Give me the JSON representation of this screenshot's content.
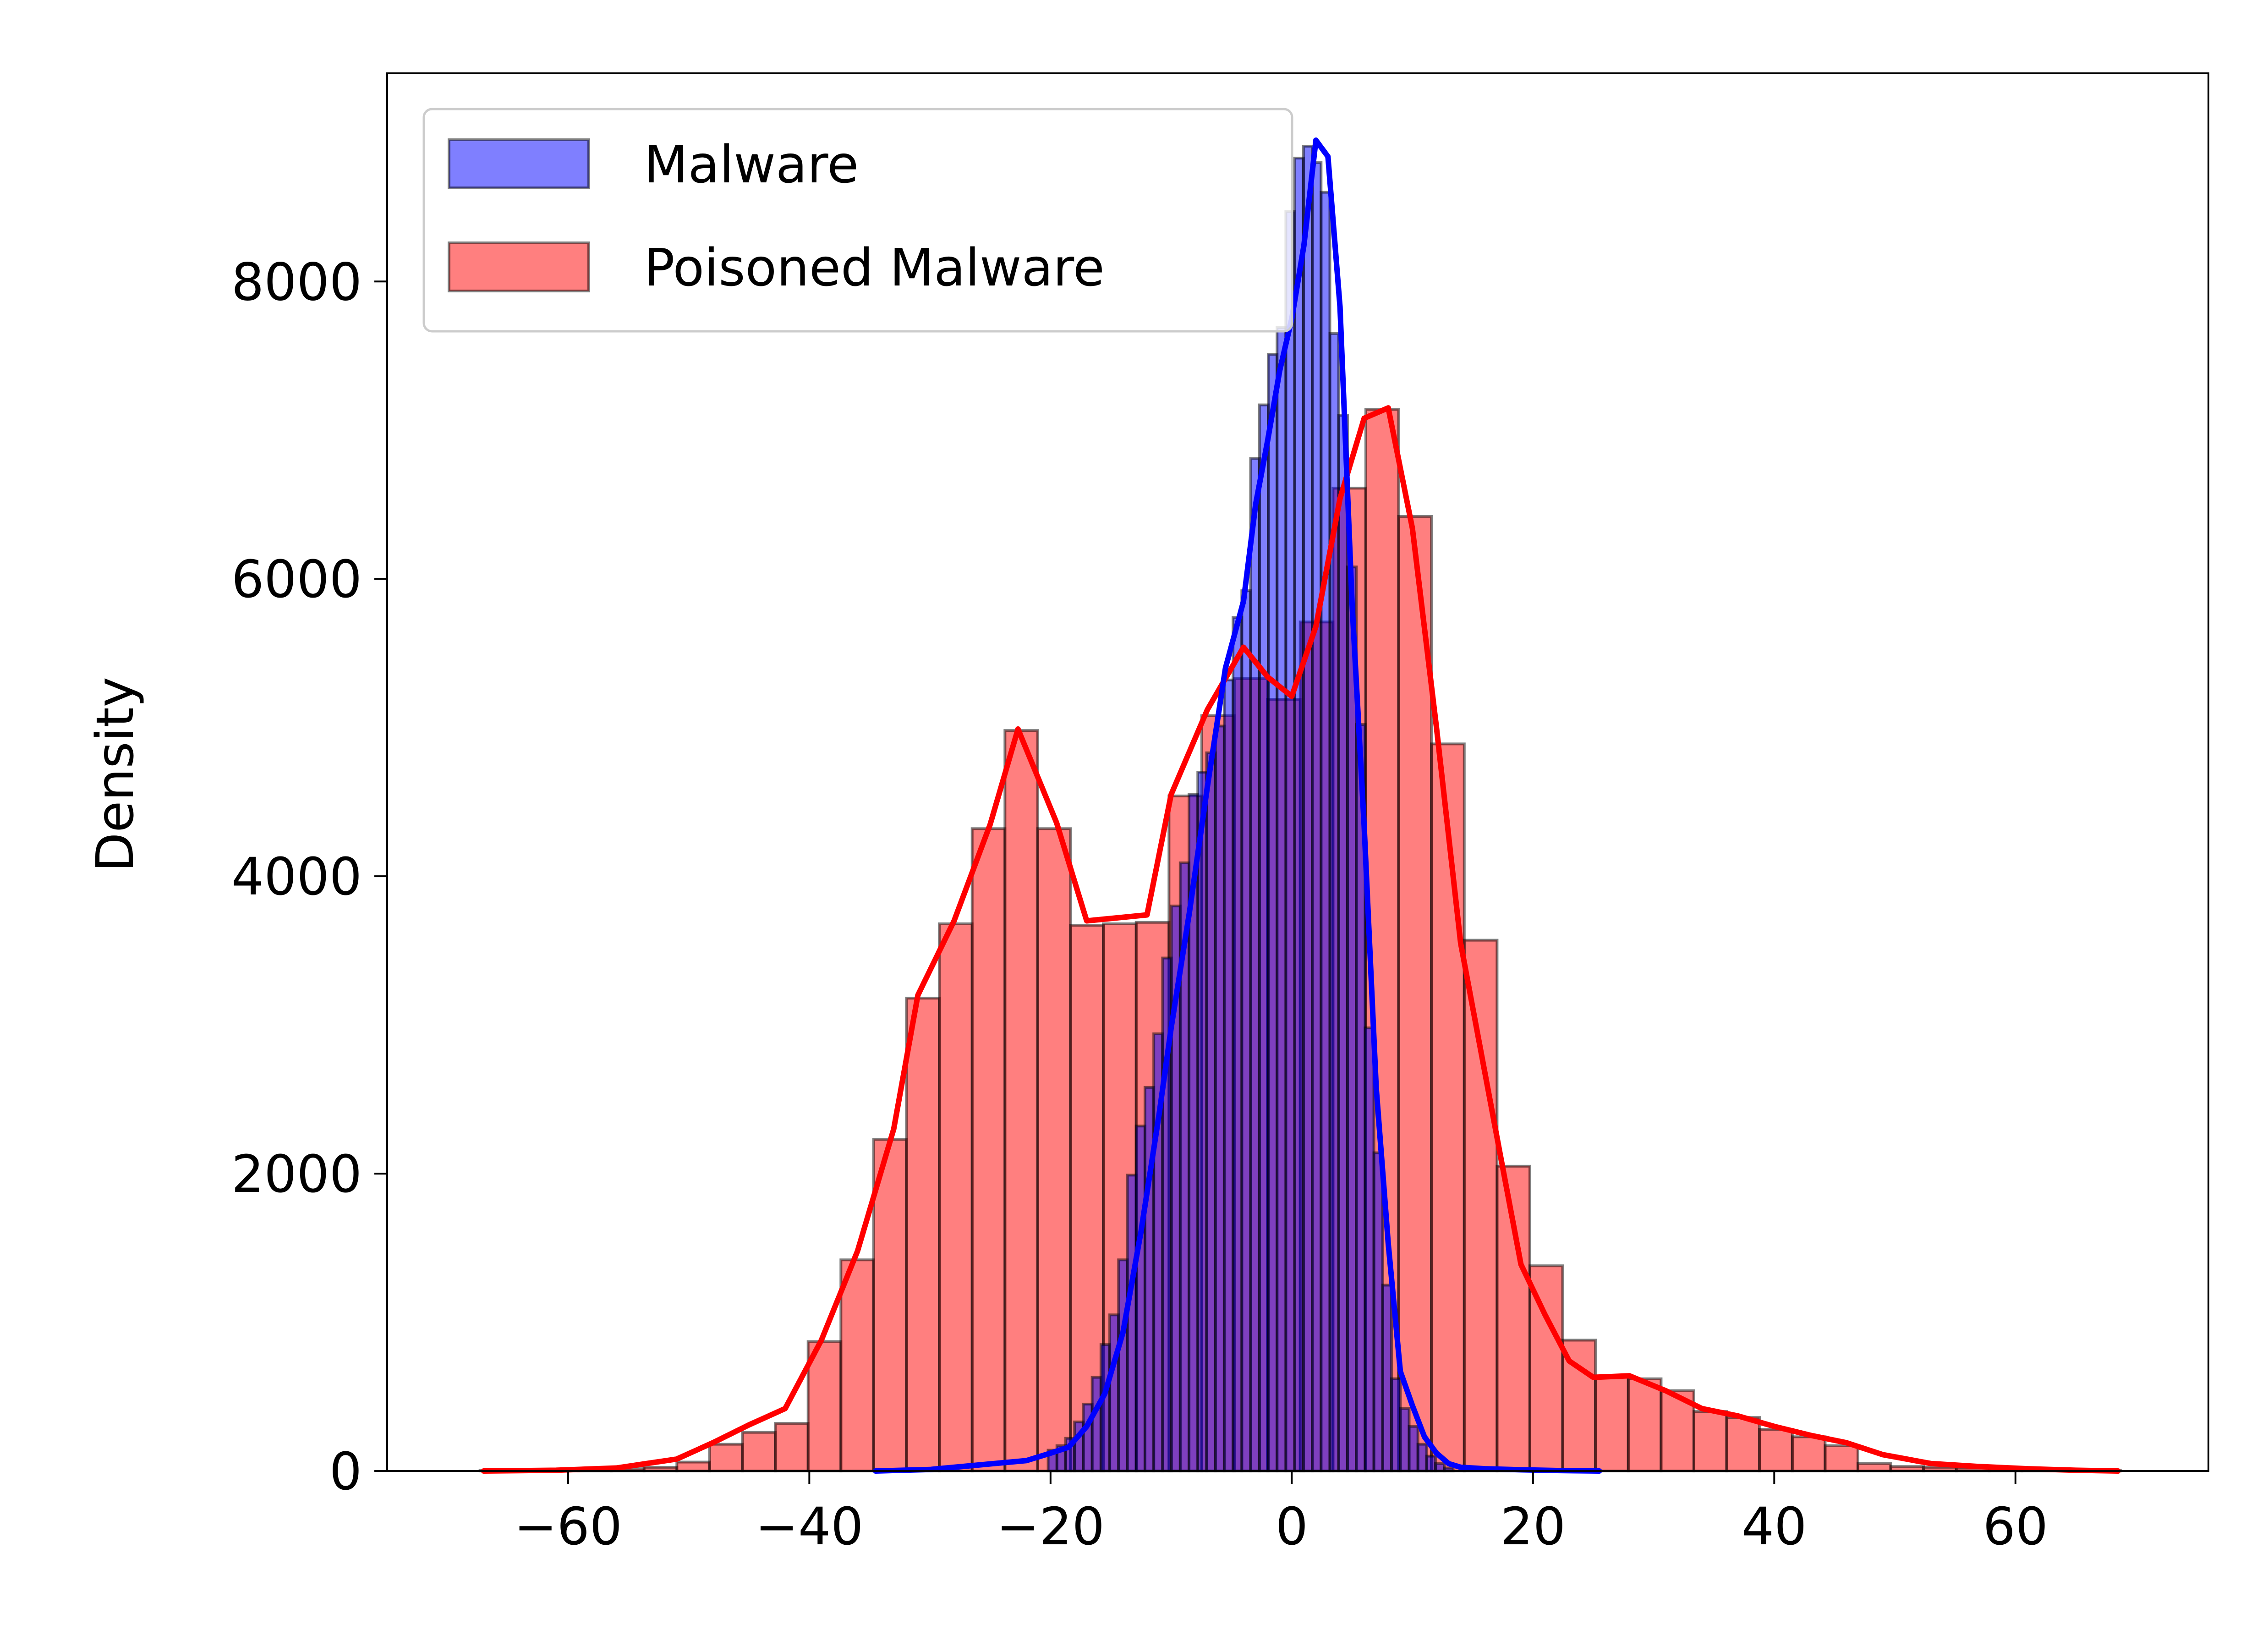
{
  "chart_data": {
    "type": "histogram",
    "title": "",
    "xlabel": "",
    "ylabel": "Density",
    "xlim": [
      -75,
      76
    ],
    "ylim": [
      0,
      9400
    ],
    "x_ticks": [
      -60,
      -40,
      -20,
      0,
      20,
      40,
      60
    ],
    "x_tick_labels": [
      "−60",
      "−40",
      "−20",
      "0",
      "20",
      "40",
      "60"
    ],
    "y_ticks": [
      0,
      2000,
      4000,
      6000,
      8000
    ],
    "y_tick_labels": [
      "0",
      "2000",
      "4000",
      "6000",
      "8000"
    ],
    "grid": false,
    "legend_position": "top-left",
    "series": [
      {
        "name": "Poisoned Malware",
        "fill_color": "#ff0000",
        "fill_opacity": 0.5,
        "line_color": "#ff0000",
        "bin_width": 2.72,
        "bins_start": [
          -67.3,
          -64.58,
          -61.86,
          -59.14,
          -56.42,
          -53.7,
          -50.98,
          -48.26,
          -45.54,
          -42.82,
          -40.1,
          -37.38,
          -34.66,
          -31.94,
          -29.22,
          -26.5,
          -23.78,
          -21.06,
          -18.34,
          -15.62,
          -12.9,
          -10.18,
          -7.46,
          -4.74,
          -2.02,
          0.7,
          3.42,
          6.14,
          8.86,
          11.58,
          14.3,
          17.02,
          19.74,
          22.46,
          25.18,
          27.9,
          30.62,
          33.34,
          36.06,
          38.78,
          41.5,
          44.22,
          46.94,
          49.66,
          52.38,
          55.1,
          57.82,
          60.54,
          63.26,
          65.98
        ],
        "bin_values": [
          5,
          5,
          8,
          10,
          15,
          25,
          60,
          180,
          260,
          320,
          870,
          1420,
          2230,
          3180,
          3680,
          4320,
          4980,
          4320,
          3670,
          3680,
          3690,
          4540,
          5080,
          5330,
          5190,
          5710,
          6610,
          7140,
          6420,
          4890,
          3570,
          2050,
          1380,
          880,
          640,
          620,
          540,
          400,
          360,
          280,
          230,
          170,
          50,
          30,
          25,
          20,
          12,
          10,
          8,
          5
        ],
        "kde_x": [
          -67,
          -61,
          -56,
          -51,
          -48,
          -45,
          -42,
          -39,
          -36,
          -33,
          -31,
          -28,
          -25,
          -22.7,
          -19.5,
          -17,
          -14.5,
          -12,
          -10,
          -7,
          -4,
          -2,
          0,
          2,
          4,
          6,
          8,
          10,
          12,
          14,
          17,
          19,
          21,
          23,
          25,
          28,
          31,
          34,
          37,
          40,
          43,
          46,
          49,
          53,
          57,
          61,
          65,
          68.5
        ],
        "kde_y": [
          0,
          5,
          20,
          80,
          190,
          310,
          420,
          880,
          1480,
          2300,
          3200,
          3700,
          4350,
          4990,
          4360,
          3700,
          3720,
          3740,
          4550,
          5120,
          5540,
          5340,
          5210,
          5680,
          6540,
          7080,
          7150,
          6340,
          5000,
          3550,
          2250,
          1390,
          1050,
          740,
          630,
          640,
          540,
          420,
          370,
          300,
          240,
          190,
          110,
          50,
          30,
          15,
          5,
          0
        ]
      },
      {
        "name": "Malware",
        "fill_color": "#0000ff",
        "fill_opacity": 0.5,
        "line_color": "#0000ff",
        "bin_width": 0.73,
        "bins_start": [
          -20.2,
          -19.47,
          -18.74,
          -18.01,
          -17.28,
          -16.55,
          -15.82,
          -15.09,
          -14.36,
          -13.63,
          -12.9,
          -12.17,
          -11.44,
          -10.71,
          -9.98,
          -9.25,
          -8.52,
          -7.79,
          -7.06,
          -6.33,
          -5.6,
          -4.87,
          -4.14,
          -3.41,
          -2.68,
          -1.95,
          -1.22,
          -0.49,
          0.24,
          0.97,
          1.7,
          2.43,
          3.16,
          3.89,
          4.62,
          5.35,
          6.08,
          6.81,
          7.54,
          8.27,
          9.0,
          9.73,
          10.46,
          11.19,
          11.92,
          12.65
        ],
        "bin_values": [
          140,
          170,
          220,
          330,
          450,
          630,
          850,
          1050,
          1420,
          1990,
          2320,
          2580,
          2940,
          3450,
          3800,
          4090,
          4550,
          4700,
          4830,
          5010,
          5320,
          5740,
          5920,
          6810,
          7170,
          7510,
          7690,
          8470,
          8830,
          8910,
          8800,
          8600,
          7650,
          7100,
          6080,
          5020,
          2980,
          2140,
          1250,
          620,
          420,
          300,
          180,
          100,
          50,
          20
        ],
        "kde_x": [
          -34.5,
          -30,
          -26,
          -22,
          -20,
          -18.5,
          -17,
          -15.5,
          -14,
          -12.5,
          -11,
          -10,
          -8.5,
          -7,
          -5.5,
          -4,
          -3,
          -2,
          -1,
          0,
          1,
          2,
          3,
          4,
          5,
          6,
          7,
          8,
          9,
          10,
          11,
          12,
          13,
          14,
          16,
          19,
          22,
          25.5
        ],
        "kde_y": [
          0,
          10,
          40,
          70,
          120,
          160,
          300,
          520,
          930,
          1610,
          2400,
          2980,
          3750,
          4600,
          5400,
          5850,
          6500,
          6930,
          7400,
          7750,
          8240,
          8950,
          8840,
          7830,
          5830,
          4340,
          2580,
          1530,
          670,
          440,
          230,
          120,
          50,
          25,
          15,
          8,
          3,
          0
        ]
      }
    ]
  }
}
